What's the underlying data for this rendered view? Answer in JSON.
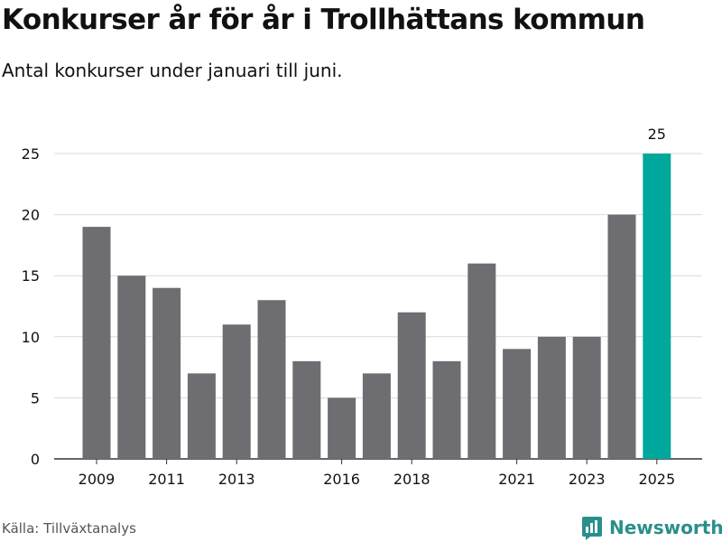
{
  "title": "Konkurser år för år i Trollhättans kommun",
  "subtitle": "Antal konkurser under januari till juni.",
  "source": "Källa: Tillväxtanalys",
  "brand": {
    "name": "Newsworthy",
    "icon": "newsworthy-logo-icon",
    "color": "#2a8f8a"
  },
  "chart_data": {
    "type": "bar",
    "categories": [
      "2009",
      "2010",
      "2011",
      "2012",
      "2013",
      "2014",
      "2015",
      "2016",
      "2017",
      "2018",
      "2019",
      "2020",
      "2021",
      "2022",
      "2023",
      "2024",
      "2025"
    ],
    "values": [
      19,
      15,
      14,
      7,
      11,
      13,
      8,
      5,
      7,
      12,
      8,
      16,
      9,
      10,
      10,
      20,
      25
    ],
    "x_tick_labels": [
      "2009",
      "2011",
      "2013",
      "2016",
      "2018",
      "2021",
      "2023",
      "2025"
    ],
    "y_ticks": [
      0,
      5,
      10,
      15,
      20,
      25
    ],
    "ylim": [
      0,
      25
    ],
    "grid": true,
    "colors": {
      "default": "#6d6d72",
      "highlight": "#00a79d"
    },
    "highlight_category": "2025",
    "data_labels": [
      {
        "category": "2025",
        "value": 25
      }
    ],
    "xlabel": "",
    "ylabel": ""
  }
}
